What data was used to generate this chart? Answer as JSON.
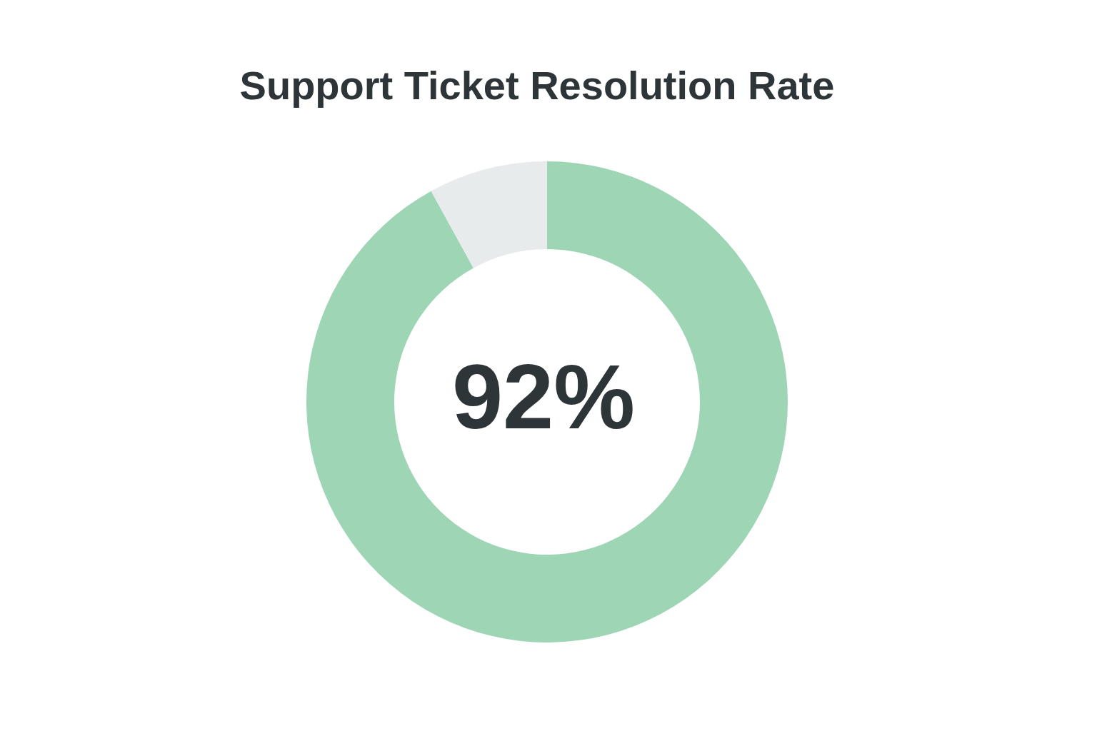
{
  "chart_data": {
    "type": "donut",
    "title": "Support Ticket Resolution Rate",
    "categories": [
      null,
      null
    ],
    "values": [
      92,
      8
    ],
    "colors": [
      "#9dd5b5",
      "#e8ebeb"
    ],
    "annotations": [
      "92%"
    ]
  }
}
